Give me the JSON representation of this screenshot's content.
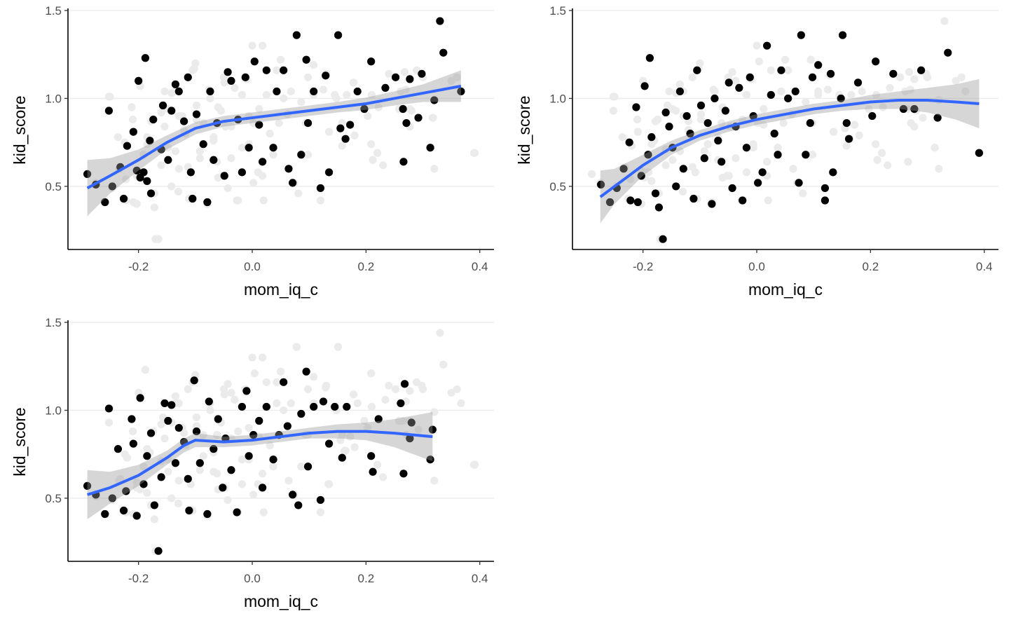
{
  "chart_data": {
    "type": "scatter",
    "layout": "3 panels (2x2 grid, bottom-right empty)",
    "colors": {
      "highlight_point": "#000000",
      "background_point": "#ebebeb",
      "smooth_line": "#3366ff",
      "ci_band": "#999999",
      "grid": "#ebebeb"
    },
    "xlabel": "mom_iq_c",
    "ylabel": "kid_score",
    "xlim": [
      -0.324,
      0.425
    ],
    "ylim": [
      0.141,
      1.5
    ],
    "xticks": [
      -0.2,
      0.0,
      0.2,
      0.4
    ],
    "xtick_labels": [
      "-0.2",
      "0.0",
      "0.2",
      "0.4"
    ],
    "yticks": [
      0.5,
      1.0,
      1.5
    ],
    "ytick_labels": [
      "0.5",
      "1.0",
      "1.5"
    ],
    "extra_background_points": [
      [
        -0.25,
        1.01
      ],
      [
        -0.21,
        0.88
      ],
      [
        -0.19,
        0.58
      ],
      [
        0.0,
        1.3
      ],
      [
        0.02,
        0.42
      ],
      [
        0.12,
        0.42
      ],
      [
        0.18,
        0.79
      ],
      [
        0.22,
        0.69
      ],
      [
        0.23,
        0.62
      ],
      [
        0.36,
        1.12
      ],
      [
        0.35,
        1.1
      ],
      [
        0.32,
        0.6
      ],
      [
        -0.1,
        1.2
      ],
      [
        -0.05,
        1.12
      ],
      [
        0.05,
        1.22
      ],
      [
        -0.13,
        0.47
      ],
      [
        -0.06,
        0.55
      ],
      [
        0.27,
        1.05
      ],
      [
        0.3,
        1.12
      ],
      [
        0.21,
        1.02
      ],
      [
        -0.17,
        0.2
      ],
      [
        0.39,
        0.69
      ]
    ],
    "panels": [
      {
        "points": [
          [
            -0.29,
            0.57
          ],
          [
            -0.275,
            0.51
          ],
          [
            -0.259,
            0.41
          ],
          [
            -0.252,
            0.93
          ],
          [
            -0.246,
            0.5
          ],
          [
            -0.232,
            0.61
          ],
          [
            -0.226,
            0.43
          ],
          [
            -0.22,
            0.73
          ],
          [
            -0.209,
            0.81
          ],
          [
            -0.2,
            1.1
          ],
          [
            -0.188,
            1.23
          ],
          [
            -0.203,
            0.59
          ],
          [
            -0.197,
            0.55
          ],
          [
            -0.191,
            0.58
          ],
          [
            -0.185,
            0.53
          ],
          [
            -0.178,
            0.46
          ],
          [
            -0.18,
            0.76
          ],
          [
            -0.174,
            0.88
          ],
          [
            -0.16,
            0.71
          ],
          [
            -0.157,
            0.96
          ],
          [
            -0.148,
            0.65
          ],
          [
            -0.142,
            0.93
          ],
          [
            -0.135,
            1.08
          ],
          [
            -0.129,
            1.04
          ],
          [
            -0.12,
            0.87
          ],
          [
            -0.113,
            1.12
          ],
          [
            -0.108,
            0.58
          ],
          [
            -0.105,
            0.43
          ],
          [
            -0.098,
            0.91
          ],
          [
            -0.086,
            0.74
          ],
          [
            -0.079,
            0.41
          ],
          [
            -0.074,
            1.04
          ],
          [
            -0.068,
            0.65
          ],
          [
            -0.062,
            0.86
          ],
          [
            -0.049,
            0.56
          ],
          [
            -0.043,
            1.15
          ],
          [
            -0.037,
            1.1
          ],
          [
            -0.025,
            0.88
          ],
          [
            -0.018,
            0.58
          ],
          [
            -0.012,
            1.12
          ],
          [
            -0.006,
            0.72
          ],
          [
            0.004,
            1.21
          ],
          [
            0.012,
            0.85
          ],
          [
            0.018,
            0.64
          ],
          [
            0.025,
            1.16
          ],
          [
            0.037,
            0.72
          ],
          [
            0.043,
            1.04
          ],
          [
            0.055,
            1.16
          ],
          [
            0.064,
            0.6
          ],
          [
            0.071,
            0.52
          ],
          [
            0.078,
            1.36
          ],
          [
            0.086,
            0.68
          ],
          [
            0.095,
            1.22
          ],
          [
            0.098,
            0.86
          ],
          [
            0.108,
            1.04
          ],
          [
            0.12,
            0.49
          ],
          [
            0.129,
            1.13
          ],
          [
            0.135,
            0.58
          ],
          [
            0.151,
            1.36
          ],
          [
            0.155,
            0.83
          ],
          [
            0.164,
            0.77
          ],
          [
            0.172,
            0.85
          ],
          [
            0.185,
            1.04
          ],
          [
            0.197,
            0.94
          ],
          [
            0.209,
            1.21
          ],
          [
            0.234,
            1.06
          ],
          [
            0.252,
            1.12
          ],
          [
            0.265,
            0.94
          ],
          [
            0.271,
            0.86
          ],
          [
            0.266,
            0.64
          ],
          [
            0.277,
            1.11
          ],
          [
            0.292,
            0.89
          ],
          [
            0.298,
            1.14
          ],
          [
            0.313,
            0.72
          ],
          [
            0.32,
            0.99
          ],
          [
            0.33,
            1.44
          ],
          [
            0.336,
            1.26
          ],
          [
            0.367,
            1.04
          ]
        ],
        "smooth": {
          "x": [
            -0.29,
            -0.25,
            -0.2,
            -0.15,
            -0.1,
            -0.05,
            0,
            0.05,
            0.1,
            0.15,
            0.2,
            0.25,
            0.3,
            0.367
          ],
          "y": [
            0.49,
            0.56,
            0.65,
            0.75,
            0.83,
            0.87,
            0.89,
            0.91,
            0.93,
            0.95,
            0.97,
            1.0,
            1.03,
            1.07
          ],
          "se": [
            0.16,
            0.1,
            0.06,
            0.04,
            0.035,
            0.03,
            0.03,
            0.03,
            0.03,
            0.03,
            0.035,
            0.04,
            0.05,
            0.09
          ]
        }
      },
      {
        "points": [
          [
            -0.274,
            0.51
          ],
          [
            -0.258,
            0.41
          ],
          [
            -0.246,
            0.49
          ],
          [
            -0.234,
            0.6
          ],
          [
            -0.224,
            0.75
          ],
          [
            -0.212,
            0.95
          ],
          [
            -0.222,
            0.42
          ],
          [
            -0.209,
            0.41
          ],
          [
            -0.197,
            1.07
          ],
          [
            -0.188,
            1.23
          ],
          [
            -0.203,
            0.56
          ],
          [
            -0.191,
            0.68
          ],
          [
            -0.185,
            0.78
          ],
          [
            -0.178,
            0.46
          ],
          [
            -0.172,
            0.38
          ],
          [
            -0.165,
            0.2
          ],
          [
            -0.16,
            0.92
          ],
          [
            -0.154,
            0.84
          ],
          [
            -0.148,
            0.72
          ],
          [
            -0.142,
            0.5
          ],
          [
            -0.135,
            1.04
          ],
          [
            -0.129,
            0.6
          ],
          [
            -0.123,
            0.9
          ],
          [
            -0.117,
            0.8
          ],
          [
            -0.111,
            0.43
          ],
          [
            -0.105,
            1.16
          ],
          [
            -0.098,
            0.96
          ],
          [
            -0.092,
            0.66
          ],
          [
            -0.086,
            0.86
          ],
          [
            -0.079,
            0.4
          ],
          [
            -0.074,
            1.0
          ],
          [
            -0.068,
            0.76
          ],
          [
            -0.062,
            0.64
          ],
          [
            -0.055,
            0.93
          ],
          [
            -0.049,
            1.09
          ],
          [
            -0.043,
            0.49
          ],
          [
            -0.037,
            0.84
          ],
          [
            -0.031,
            1.06
          ],
          [
            -0.025,
            0.42
          ],
          [
            -0.018,
            0.72
          ],
          [
            -0.012,
            1.12
          ],
          [
            -0.006,
            0.9
          ],
          [
            0.002,
            0.52
          ],
          [
            0.01,
            0.58
          ],
          [
            0.018,
            1.3
          ],
          [
            0.025,
            1.02
          ],
          [
            0.031,
            0.8
          ],
          [
            0.037,
            0.68
          ],
          [
            0.043,
            1.16
          ],
          [
            0.055,
            1.0
          ],
          [
            0.068,
            1.04
          ],
          [
            0.074,
            0.52
          ],
          [
            0.078,
            1.36
          ],
          [
            0.086,
            0.68
          ],
          [
            0.094,
            0.86
          ],
          [
            0.098,
            1.12
          ],
          [
            0.108,
            1.19
          ],
          [
            0.12,
            0.49
          ],
          [
            0.12,
            0.42
          ],
          [
            0.13,
            1.14
          ],
          [
            0.134,
            0.58
          ],
          [
            0.148,
            1.0
          ],
          [
            0.151,
            1.36
          ],
          [
            0.158,
            0.86
          ],
          [
            0.162,
            0.77
          ],
          [
            0.178,
            1.09
          ],
          [
            0.203,
            0.9
          ],
          [
            0.209,
            1.21
          ],
          [
            0.24,
            1.14
          ],
          [
            0.258,
            0.94
          ],
          [
            0.277,
            0.94
          ],
          [
            0.289,
            1.16
          ],
          [
            0.318,
            0.89
          ],
          [
            0.336,
            1.26
          ],
          [
            0.391,
            0.69
          ]
        ],
        "smooth": {
          "x": [
            -0.275,
            -0.25,
            -0.2,
            -0.15,
            -0.1,
            -0.05,
            0,
            0.05,
            0.1,
            0.15,
            0.2,
            0.25,
            0.3,
            0.35,
            0.391
          ],
          "y": [
            0.44,
            0.5,
            0.62,
            0.72,
            0.79,
            0.84,
            0.88,
            0.91,
            0.94,
            0.96,
            0.98,
            0.99,
            0.99,
            0.98,
            0.97
          ],
          "se": [
            0.15,
            0.1,
            0.06,
            0.04,
            0.03,
            0.03,
            0.03,
            0.03,
            0.03,
            0.03,
            0.04,
            0.05,
            0.07,
            0.1,
            0.14
          ]
        }
      },
      {
        "points": [
          [
            -0.29,
            0.57
          ],
          [
            -0.275,
            0.52
          ],
          [
            -0.259,
            0.41
          ],
          [
            -0.252,
            1.01
          ],
          [
            -0.246,
            0.5
          ],
          [
            -0.236,
            0.78
          ],
          [
            -0.226,
            0.43
          ],
          [
            -0.222,
            0.54
          ],
          [
            -0.212,
            0.95
          ],
          [
            -0.209,
            0.81
          ],
          [
            -0.203,
            0.4
          ],
          [
            -0.197,
            1.07
          ],
          [
            -0.191,
            0.58
          ],
          [
            -0.185,
            0.74
          ],
          [
            -0.178,
            0.87
          ],
          [
            -0.172,
            0.46
          ],
          [
            -0.165,
            0.2
          ],
          [
            -0.16,
            0.62
          ],
          [
            -0.154,
            1.04
          ],
          [
            -0.148,
            0.94
          ],
          [
            -0.142,
            1.03
          ],
          [
            -0.135,
            0.7
          ],
          [
            -0.129,
            0.9
          ],
          [
            -0.12,
            0.82
          ],
          [
            -0.113,
            0.61
          ],
          [
            -0.111,
            0.43
          ],
          [
            -0.102,
            1.17
          ],
          [
            -0.098,
            0.88
          ],
          [
            -0.092,
            0.7
          ],
          [
            -0.079,
            0.41
          ],
          [
            -0.076,
            1.05
          ],
          [
            -0.068,
            0.78
          ],
          [
            -0.06,
            0.95
          ],
          [
            -0.052,
            0.56
          ],
          [
            -0.047,
            0.84
          ],
          [
            -0.037,
            0.66
          ],
          [
            -0.027,
            0.42
          ],
          [
            -0.018,
            1.02
          ],
          [
            -0.01,
            1.11
          ],
          [
            -0.006,
            0.74
          ],
          [
            0.002,
            0.86
          ],
          [
            0.012,
            0.94
          ],
          [
            0.018,
            0.56
          ],
          [
            0.025,
            1.02
          ],
          [
            0.037,
            0.72
          ],
          [
            0.047,
            0.86
          ],
          [
            0.055,
            1.16
          ],
          [
            0.062,
            0.91
          ],
          [
            0.071,
            0.52
          ],
          [
            0.081,
            0.46
          ],
          [
            0.086,
            0.98
          ],
          [
            0.095,
            1.22
          ],
          [
            0.098,
            0.68
          ],
          [
            0.108,
            1.02
          ],
          [
            0.12,
            0.49
          ],
          [
            0.125,
            1.05
          ],
          [
            0.135,
            0.81
          ],
          [
            0.145,
            1.02
          ],
          [
            0.158,
            0.73
          ],
          [
            0.166,
            1.02
          ],
          [
            0.209,
            0.74
          ],
          [
            0.212,
            0.65
          ],
          [
            0.222,
            0.95
          ],
          [
            0.261,
            1.04
          ],
          [
            0.268,
            1.15
          ],
          [
            0.266,
            0.64
          ],
          [
            0.277,
            0.84
          ],
          [
            0.28,
            0.93
          ],
          [
            0.313,
            0.72
          ],
          [
            0.317,
            0.89
          ]
        ],
        "smooth": {
          "x": [
            -0.29,
            -0.25,
            -0.2,
            -0.15,
            -0.12,
            -0.1,
            -0.05,
            0,
            0.05,
            0.1,
            0.15,
            0.2,
            0.25,
            0.317
          ],
          "y": [
            0.52,
            0.56,
            0.63,
            0.73,
            0.8,
            0.83,
            0.82,
            0.83,
            0.85,
            0.87,
            0.88,
            0.88,
            0.87,
            0.85
          ],
          "se": [
            0.14,
            0.09,
            0.06,
            0.04,
            0.04,
            0.04,
            0.03,
            0.03,
            0.03,
            0.03,
            0.04,
            0.05,
            0.08,
            0.14
          ]
        }
      }
    ]
  }
}
